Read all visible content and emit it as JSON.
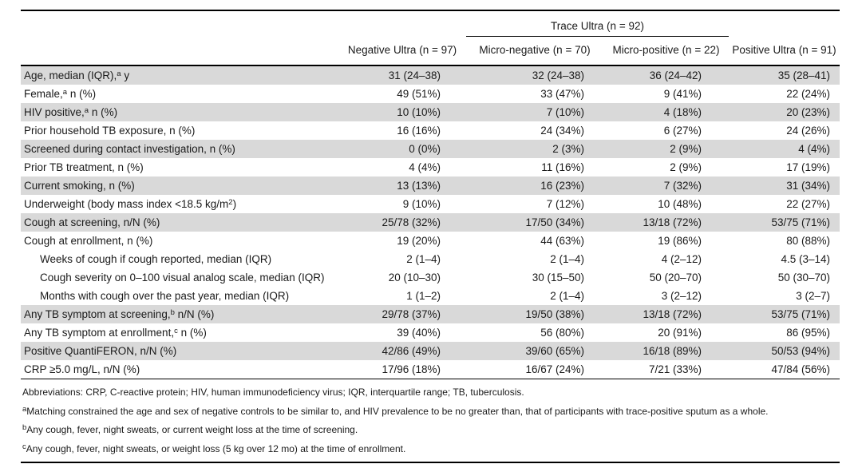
{
  "table": {
    "spanner": {
      "label": "Trace Ultra (n = 92)"
    },
    "columns": [
      "Negative Ultra (n = 97)",
      "Micro-negative (n = 70)",
      "Micro-positive (n = 22)",
      "Positive Ultra (n = 91)"
    ],
    "rows": [
      {
        "label": [
          {
            "t": "Age, median (IQR),"
          },
          {
            "sup": "a"
          },
          {
            "t": " y"
          }
        ],
        "shaded": true,
        "indent": false,
        "values": [
          "31 (24–38)",
          "32 (24–38)",
          "36 (24–42)",
          "35 (28–41)"
        ]
      },
      {
        "label": [
          {
            "t": "Female,"
          },
          {
            "sup": "a"
          },
          {
            "t": " n (%)"
          }
        ],
        "shaded": false,
        "indent": false,
        "values": [
          "49 (51%)",
          "33 (47%)",
          "9 (41%)",
          "22 (24%)"
        ]
      },
      {
        "label": [
          {
            "t": "HIV positive,"
          },
          {
            "sup": "a"
          },
          {
            "t": " n (%)"
          }
        ],
        "shaded": true,
        "indent": false,
        "values": [
          "10 (10%)",
          "7 (10%)",
          "4 (18%)",
          "20 (23%)"
        ]
      },
      {
        "label": [
          {
            "t": "Prior household TB exposure, n (%)"
          }
        ],
        "shaded": false,
        "indent": false,
        "values": [
          "16 (16%)",
          "24 (34%)",
          "6 (27%)",
          "24 (26%)"
        ]
      },
      {
        "label": [
          {
            "t": "Screened during contact investigation, n (%)"
          }
        ],
        "shaded": true,
        "indent": false,
        "values": [
          "0 (0%)",
          "2 (3%)",
          "2 (9%)",
          "4 (4%)"
        ]
      },
      {
        "label": [
          {
            "t": "Prior TB treatment, n (%)"
          }
        ],
        "shaded": false,
        "indent": false,
        "values": [
          "4 (4%)",
          "11 (16%)",
          "2 (9%)",
          "17 (19%)"
        ]
      },
      {
        "label": [
          {
            "t": "Current smoking, n (%)"
          }
        ],
        "shaded": true,
        "indent": false,
        "values": [
          "13 (13%)",
          "16 (23%)",
          "7 (32%)",
          "31 (34%)"
        ]
      },
      {
        "label": [
          {
            "t": "Underweight (body mass index <18.5 kg/m"
          },
          {
            "sup": "2"
          },
          {
            "t": ")"
          }
        ],
        "shaded": false,
        "indent": false,
        "values": [
          "9 (10%)",
          "7 (12%)",
          "10 (48%)",
          "22 (27%)"
        ]
      },
      {
        "label": [
          {
            "t": "Cough at screening, n/N (%)"
          }
        ],
        "shaded": true,
        "indent": false,
        "values": [
          "25/78 (32%)",
          "17/50 (34%)",
          "13/18 (72%)",
          "53/75 (71%)"
        ]
      },
      {
        "label": [
          {
            "t": "Cough at enrollment, n (%)"
          }
        ],
        "shaded": false,
        "indent": false,
        "values": [
          "19 (20%)",
          "44 (63%)",
          "19 (86%)",
          "80 (88%)"
        ]
      },
      {
        "label": [
          {
            "t": "Weeks of cough if cough reported, median (IQR)"
          }
        ],
        "shaded": false,
        "indent": true,
        "values": [
          "2 (1–4)",
          "2 (1–4)",
          "4 (2–12)",
          "4.5 (3–14)"
        ]
      },
      {
        "label": [
          {
            "t": "Cough severity on 0–100 visual analog scale, median (IQR)"
          }
        ],
        "shaded": false,
        "indent": true,
        "values": [
          "20 (10–30)",
          "30 (15–50)",
          "50 (20–70)",
          "50 (30–70)"
        ]
      },
      {
        "label": [
          {
            "t": "Months with cough over the past year, median (IQR)"
          }
        ],
        "shaded": false,
        "indent": true,
        "values": [
          "1 (1–2)",
          "2 (1–4)",
          "3 (2–12)",
          "3 (2–7)"
        ]
      },
      {
        "label": [
          {
            "t": "Any TB symptom at screening,"
          },
          {
            "sup": "b"
          },
          {
            "t": " n/N (%)"
          }
        ],
        "shaded": true,
        "indent": false,
        "values": [
          "29/78 (37%)",
          "19/50 (38%)",
          "13/18 (72%)",
          "53/75 (71%)"
        ]
      },
      {
        "label": [
          {
            "t": "Any TB symptom at enrollment,"
          },
          {
            "sup": "c"
          },
          {
            "t": " n (%)"
          }
        ],
        "shaded": false,
        "indent": false,
        "values": [
          "39 (40%)",
          "56 (80%)",
          "20 (91%)",
          "86 (95%)"
        ]
      },
      {
        "label": [
          {
            "t": "Positive QuantiFERON, n/N (%)"
          }
        ],
        "shaded": true,
        "indent": false,
        "values": [
          "42/86 (49%)",
          "39/60 (65%)",
          "16/18 (89%)",
          "50/53 (94%)"
        ]
      },
      {
        "label": [
          {
            "t": "CRP ≥5.0 mg/L, n/N (%)"
          }
        ],
        "shaded": false,
        "indent": false,
        "values": [
          "17/96 (18%)",
          "16/67 (24%)",
          "7/21 (33%)",
          "47/84 (56%)"
        ]
      }
    ],
    "footnotes": [
      [
        {
          "t": "Abbreviations: CRP, C-reactive protein; HIV, human immunodeficiency virus; IQR, interquartile range; TB, tuberculosis."
        }
      ],
      [
        {
          "sup": "a"
        },
        {
          "t": "Matching constrained the age and sex of negative controls to be similar to, and HIV prevalence to be no greater than, that of participants with trace-positive sputum as a whole."
        }
      ],
      [
        {
          "sup": "b"
        },
        {
          "t": "Any cough, fever, night sweats, or current weight loss at the time of screening."
        }
      ],
      [
        {
          "sup": "c"
        },
        {
          "t": "Any cough, fever, night sweats, or weight loss (5 kg over 12 mo) at the time of enrollment."
        }
      ]
    ],
    "colors": {
      "shaded_row": "#d9d9d9",
      "rule": "#000000",
      "text": "#1a1a1a"
    }
  }
}
